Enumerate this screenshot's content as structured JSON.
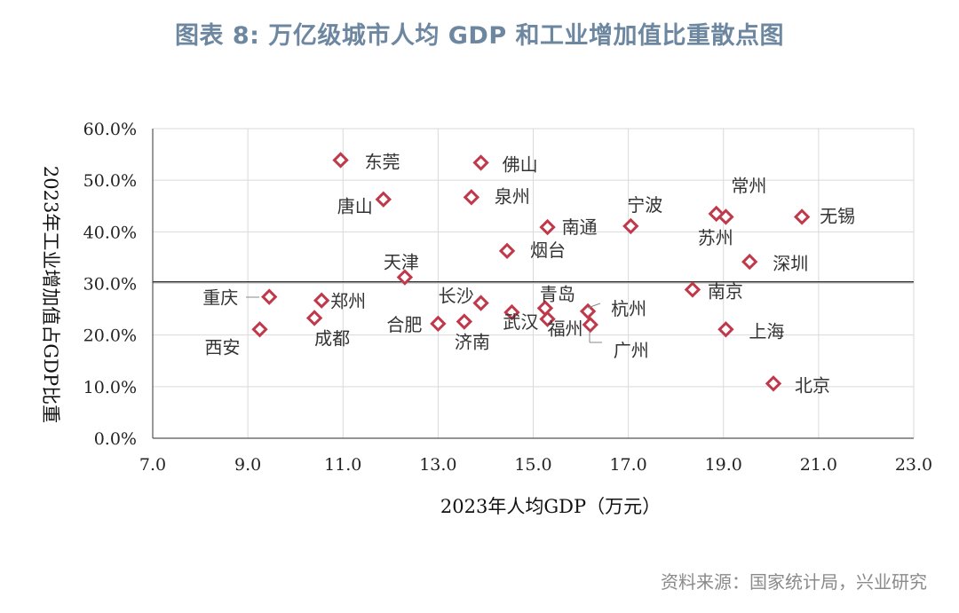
{
  "title": "图表 8: 万亿级城市人均 GDP 和工业增加值比重散点图",
  "source": "资料来源：国家统计局，兴业研究",
  "colors": {
    "marker": "#c0394b",
    "title": "#6d87a0",
    "grid": "#d9d9d9",
    "axis": "#555555"
  },
  "chart_data": {
    "type": "scatter",
    "title": "图表 8: 万亿级城市人均 GDP 和工业增加值比重散点图",
    "xlabel": "2023年人均GDP（万元）",
    "ylabel": "2023年工业增加值占GDP比重",
    "xlim": [
      7.0,
      23.0
    ],
    "ylim": [
      0,
      60
    ],
    "xticks": [
      "7.0",
      "9.0",
      "11.0",
      "13.0",
      "15.0",
      "17.0",
      "19.0",
      "21.0",
      "23.0"
    ],
    "yticks": [
      "0.0%",
      "10.0%",
      "20.0%",
      "30.0%",
      "40.0%",
      "50.0%",
      "60.0%"
    ],
    "reference_line_y": 30.3,
    "grid": true,
    "points": [
      {
        "name": "东莞",
        "x": 10.95,
        "y": 53.9
      },
      {
        "name": "佛山",
        "x": 13.9,
        "y": 53.4
      },
      {
        "name": "唐山",
        "x": 11.85,
        "y": 46.3
      },
      {
        "name": "泉州",
        "x": 13.7,
        "y": 46.7
      },
      {
        "name": "宁波",
        "x": 17.05,
        "y": 41.1
      },
      {
        "name": "南通",
        "x": 15.3,
        "y": 40.9
      },
      {
        "name": "常州",
        "x": 19.05,
        "y": 42.9
      },
      {
        "name": "苏州",
        "x": 18.85,
        "y": 43.5
      },
      {
        "name": "无锡",
        "x": 20.65,
        "y": 42.9
      },
      {
        "name": "烟台",
        "x": 14.45,
        "y": 36.3
      },
      {
        "name": "深圳",
        "x": 19.55,
        "y": 34.2
      },
      {
        "name": "天津",
        "x": 12.3,
        "y": 31.2
      },
      {
        "name": "南京",
        "x": 18.35,
        "y": 28.8
      },
      {
        "name": "重庆",
        "x": 9.45,
        "y": 27.4
      },
      {
        "name": "郑州",
        "x": 10.55,
        "y": 26.7
      },
      {
        "name": "长沙",
        "x": 13.9,
        "y": 26.2
      },
      {
        "name": "青岛",
        "x": 15.25,
        "y": 25.2
      },
      {
        "name": "杭州",
        "x": 16.15,
        "y": 24.6
      },
      {
        "name": "武汉",
        "x": 14.55,
        "y": 24.4
      },
      {
        "name": "成都",
        "x": 10.4,
        "y": 23.3
      },
      {
        "name": "福州",
        "x": 15.3,
        "y": 23.1
      },
      {
        "name": "济南",
        "x": 13.55,
        "y": 22.6
      },
      {
        "name": "合肥",
        "x": 13.0,
        "y": 22.2
      },
      {
        "name": "广州",
        "x": 16.2,
        "y": 22.0
      },
      {
        "name": "西安",
        "x": 9.25,
        "y": 21.1
      },
      {
        "name": "上海",
        "x": 19.05,
        "y": 21.1
      },
      {
        "name": "北京",
        "x": 20.05,
        "y": 10.6
      }
    ]
  }
}
